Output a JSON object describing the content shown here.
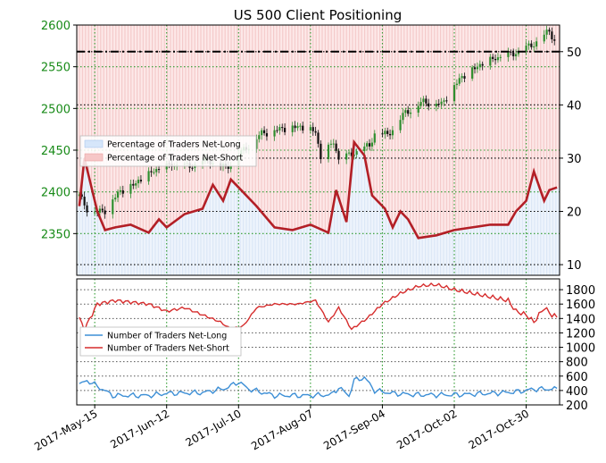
{
  "chart_data": [
    {
      "type": "line",
      "title": "US 500 Client Positioning",
      "x_tick_labels": [
        "2017-May-15",
        "2017-Jun-12",
        "2017-Jul-10",
        "2017-Aug-07",
        "2017-Sep-04",
        "2017-Oct-02",
        "2017-Oct-30"
      ],
      "x_range": [
        "2017-05-08",
        "2017-11-12"
      ],
      "price_axis": {
        "side": "left",
        "range": [
          2300,
          2600
        ],
        "ticks": [
          2350,
          2400,
          2450,
          2500,
          2550,
          2600
        ]
      },
      "percent_axis": {
        "side": "right",
        "range": [
          8,
          55
        ],
        "ticks": [
          10,
          20,
          30,
          40,
          50
        ]
      },
      "reference_line": {
        "value": 50,
        "axis": "percent"
      },
      "legend": {
        "placement": "center-left",
        "entries": [
          "Percentage of Traders Net-Long",
          "Percentage of Traders Net-Short"
        ]
      },
      "price_anchor_points": [
        [
          "2017-05-09",
          2395
        ],
        [
          "2017-05-12",
          2380
        ],
        [
          "2017-05-16",
          2375
        ],
        [
          "2017-05-19",
          2378
        ],
        [
          "2017-05-24",
          2398
        ],
        [
          "2017-05-31",
          2410
        ],
        [
          "2017-06-07",
          2425
        ],
        [
          "2017-06-14",
          2432
        ],
        [
          "2017-06-21",
          2430
        ],
        [
          "2017-06-28",
          2438
        ],
        [
          "2017-07-05",
          2428
        ],
        [
          "2017-07-12",
          2450
        ],
        [
          "2017-07-19",
          2470
        ],
        [
          "2017-07-26",
          2475
        ],
        [
          "2017-08-02",
          2478
        ],
        [
          "2017-08-09",
          2472
        ],
        [
          "2017-08-11",
          2440
        ],
        [
          "2017-08-16",
          2460
        ],
        [
          "2017-08-18",
          2438
        ],
        [
          "2017-08-23",
          2445
        ],
        [
          "2017-08-30",
          2455
        ],
        [
          "2017-09-01",
          2470
        ],
        [
          "2017-09-06",
          2468
        ],
        [
          "2017-09-13",
          2495
        ],
        [
          "2017-09-20",
          2508
        ],
        [
          "2017-09-27",
          2505
        ],
        [
          "2017-10-04",
          2535
        ],
        [
          "2017-10-11",
          2550
        ],
        [
          "2017-10-18",
          2560
        ],
        [
          "2017-10-25",
          2565
        ],
        [
          "2017-11-01",
          2575
        ],
        [
          "2017-11-08",
          2592
        ],
        [
          "2017-11-10",
          2582
        ]
      ],
      "net_long_percent_anchor_points": [
        [
          "2017-05-09",
          21
        ],
        [
          "2017-05-11",
          30
        ],
        [
          "2017-05-16",
          20
        ],
        [
          "2017-05-19",
          16.5
        ],
        [
          "2017-05-23",
          17
        ],
        [
          "2017-05-29",
          17.5
        ],
        [
          "2017-06-05",
          16
        ],
        [
          "2017-06-09",
          18.5
        ],
        [
          "2017-06-12",
          17
        ],
        [
          "2017-06-19",
          19.5
        ],
        [
          "2017-06-26",
          20.5
        ],
        [
          "2017-06-30",
          25
        ],
        [
          "2017-07-04",
          22
        ],
        [
          "2017-07-07",
          26
        ],
        [
          "2017-07-11",
          24
        ],
        [
          "2017-07-17",
          21
        ],
        [
          "2017-07-24",
          17
        ],
        [
          "2017-07-31",
          16.5
        ],
        [
          "2017-08-07",
          17.5
        ],
        [
          "2017-08-14",
          16
        ],
        [
          "2017-08-17",
          24
        ],
        [
          "2017-08-21",
          18
        ],
        [
          "2017-08-24",
          33
        ],
        [
          "2017-08-28",
          30.5
        ],
        [
          "2017-08-31",
          23
        ],
        [
          "2017-09-05",
          20.5
        ],
        [
          "2017-09-08",
          17
        ],
        [
          "2017-09-11",
          20
        ],
        [
          "2017-09-14",
          18.5
        ],
        [
          "2017-09-18",
          15
        ],
        [
          "2017-09-25",
          15.5
        ],
        [
          "2017-10-02",
          16.5
        ],
        [
          "2017-10-09",
          17
        ],
        [
          "2017-10-16",
          17.5
        ],
        [
          "2017-10-23",
          17.5
        ],
        [
          "2017-10-26",
          20
        ],
        [
          "2017-10-30",
          22
        ],
        [
          "2017-11-02",
          27.5
        ],
        [
          "2017-11-06",
          22
        ],
        [
          "2017-11-08",
          24
        ],
        [
          "2017-11-11",
          24.5
        ]
      ]
    },
    {
      "type": "line",
      "counts_axis": {
        "side": "right",
        "range": [
          200,
          1950
        ],
        "ticks": [
          200,
          400,
          600,
          800,
          1000,
          1200,
          1400,
          1600,
          1800
        ]
      },
      "legend": {
        "placement": "center-left",
        "entries": [
          "Number of Traders Net-Long",
          "Number of Traders Net-Short"
        ]
      },
      "series": [
        {
          "name": "Number of Traders Net-Long",
          "color": "#3d8fd6",
          "anchor_points": [
            [
              "2017-05-09",
              480
            ],
            [
              "2017-05-12",
              540
            ],
            [
              "2017-05-17",
              440
            ],
            [
              "2017-05-22",
              330
            ],
            [
              "2017-06-05",
              330
            ],
            [
              "2017-06-12",
              360
            ],
            [
              "2017-06-26",
              370
            ],
            [
              "2017-07-05",
              430
            ],
            [
              "2017-07-10",
              520
            ],
            [
              "2017-07-14",
              420
            ],
            [
              "2017-07-24",
              330
            ],
            [
              "2017-08-07",
              330
            ],
            [
              "2017-08-15",
              340
            ],
            [
              "2017-08-18",
              440
            ],
            [
              "2017-08-22",
              330
            ],
            [
              "2017-08-24",
              540
            ],
            [
              "2017-08-28",
              580
            ],
            [
              "2017-09-01",
              400
            ],
            [
              "2017-09-08",
              360
            ],
            [
              "2017-09-18",
              340
            ],
            [
              "2017-10-02",
              340
            ],
            [
              "2017-10-16",
              360
            ],
            [
              "2017-10-26",
              380
            ],
            [
              "2017-10-30",
              400
            ],
            [
              "2017-11-02",
              420
            ],
            [
              "2017-11-11",
              420
            ]
          ]
        },
        {
          "name": "Number of Traders Net-Short",
          "color": "#d62d2d",
          "anchor_points": [
            [
              "2017-05-09",
              1400
            ],
            [
              "2017-05-11",
              1250
            ],
            [
              "2017-05-16",
              1600
            ],
            [
              "2017-05-23",
              1650
            ],
            [
              "2017-06-05",
              1600
            ],
            [
              "2017-06-12",
              1500
            ],
            [
              "2017-06-19",
              1550
            ],
            [
              "2017-06-26",
              1450
            ],
            [
              "2017-07-03",
              1350
            ],
            [
              "2017-07-07",
              1250
            ],
            [
              "2017-07-12",
              1300
            ],
            [
              "2017-07-17",
              1550
            ],
            [
              "2017-07-24",
              1600
            ],
            [
              "2017-08-02",
              1600
            ],
            [
              "2017-08-09",
              1650
            ],
            [
              "2017-08-14",
              1350
            ],
            [
              "2017-08-18",
              1550
            ],
            [
              "2017-08-23",
              1250
            ],
            [
              "2017-08-29",
              1400
            ],
            [
              "2017-09-04",
              1600
            ],
            [
              "2017-09-11",
              1750
            ],
            [
              "2017-09-18",
              1850
            ],
            [
              "2017-09-25",
              1870
            ],
            [
              "2017-10-02",
              1800
            ],
            [
              "2017-10-09",
              1750
            ],
            [
              "2017-10-16",
              1700
            ],
            [
              "2017-10-23",
              1650
            ],
            [
              "2017-10-26",
              1500
            ],
            [
              "2017-10-30",
              1450
            ],
            [
              "2017-11-02",
              1350
            ],
            [
              "2017-11-06",
              1550
            ],
            [
              "2017-11-09",
              1450
            ],
            [
              "2017-11-11",
              1420
            ]
          ]
        }
      ]
    }
  ]
}
